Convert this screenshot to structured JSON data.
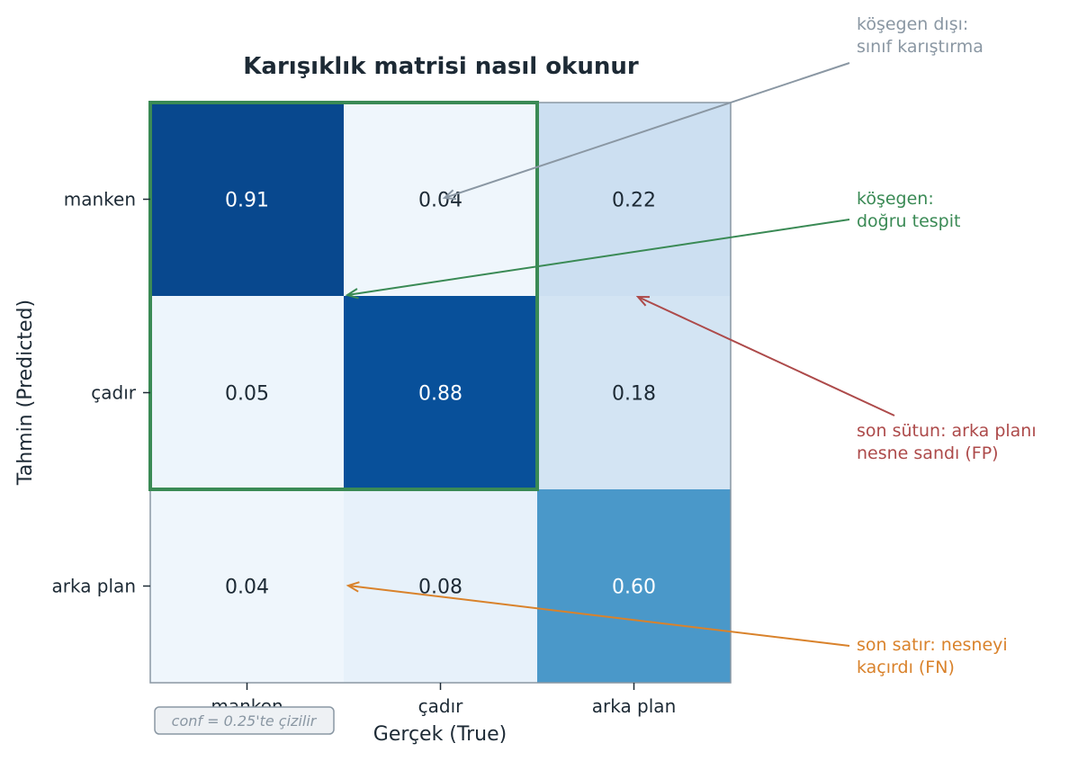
{
  "chart_data": {
    "type": "heatmap",
    "title": "Karışıklık matrisi nasıl okunur",
    "xlabel": "Gerçek (True)",
    "ylabel": "Tahmin (Predicted)",
    "x_categories": [
      "manken",
      "çadır",
      "arka plan"
    ],
    "y_categories": [
      "manken",
      "çadır",
      "arka plan"
    ],
    "values": [
      [
        0.91,
        0.04,
        0.22
      ],
      [
        0.05,
        0.88,
        0.18
      ],
      [
        0.04,
        0.08,
        0.6
      ]
    ],
    "value_labels": [
      [
        "0.91",
        "0.04",
        "0.22"
      ],
      [
        "0.05",
        "0.88",
        "0.18"
      ],
      [
        "0.04",
        "0.08",
        "0.60"
      ]
    ],
    "colormap": "Blues",
    "value_range": [
      0,
      1
    ],
    "highlight_block": {
      "rows": [
        "manken",
        "çadır"
      ],
      "cols": [
        "manken",
        "çadır"
      ],
      "color": "#3a8a55"
    },
    "annotations": [
      {
        "id": "offdiag",
        "lines": [
          "köşegen dışı:",
          "sınıf karıştırma"
        ],
        "color": "#8a97a3",
        "target": {
          "row": "manken",
          "col": "çadır"
        }
      },
      {
        "id": "diag",
        "lines": [
          "köşegen:",
          "doğru tespit"
        ],
        "color": "#3a8a55",
        "target": {
          "row": "çadır",
          "col": "çadır"
        }
      },
      {
        "id": "fp",
        "lines": [
          "son sütun: arka planı",
          "nesne sandı (FP)"
        ],
        "color": "#ad4a4a",
        "target": {
          "row": "çadır",
          "col": "arka plan"
        }
      },
      {
        "id": "fn",
        "lines": [
          "son satır: nesneyi",
          "kaçırdı (FN)"
        ],
        "color": "#d9822b",
        "target": {
          "row": "arka plan",
          "col": "çadır"
        }
      }
    ],
    "footnote": "conf = 0.25'te çizilir"
  }
}
